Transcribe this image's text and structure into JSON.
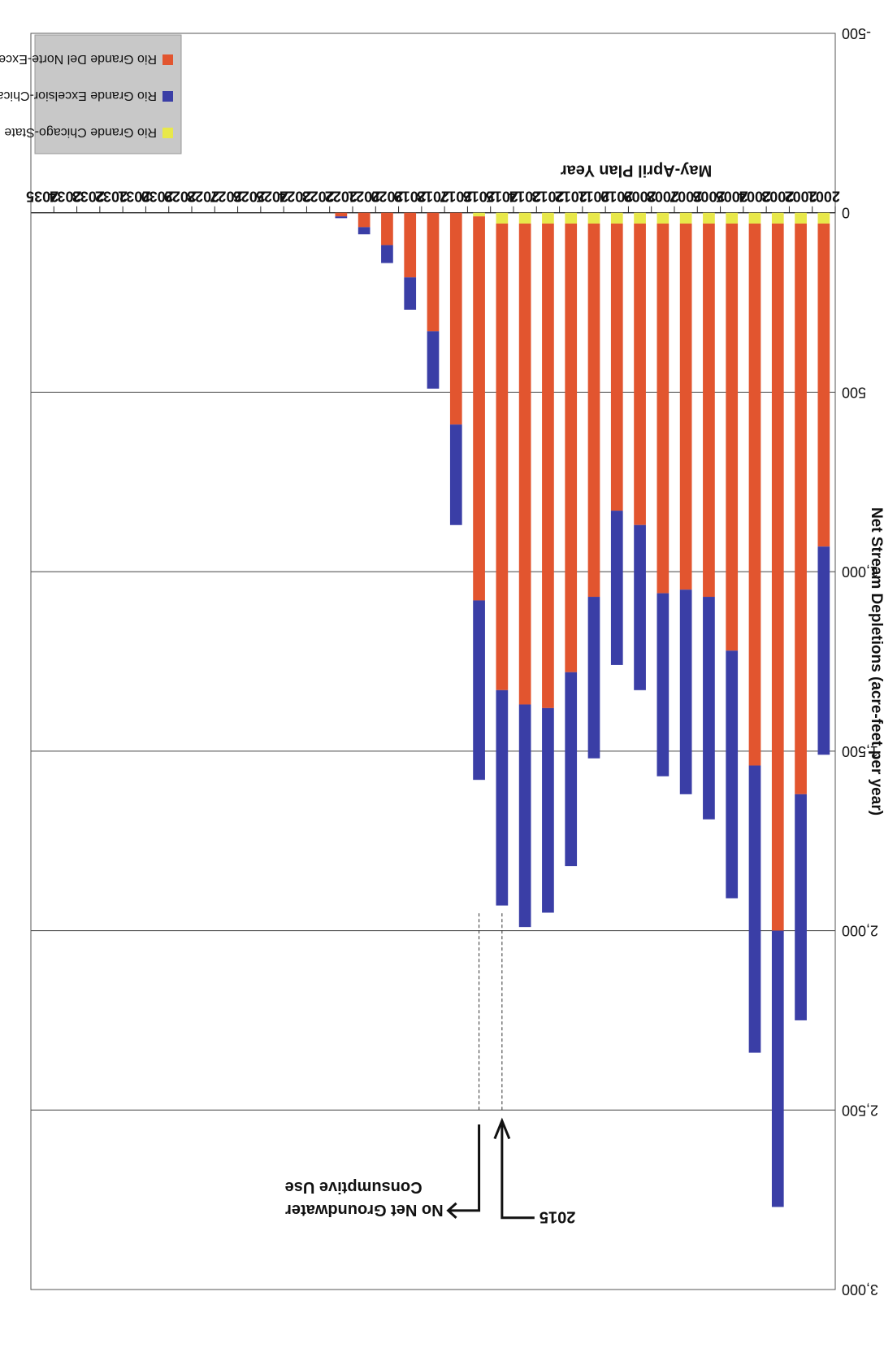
{
  "chart_data": {
    "type": "bar",
    "stacked": true,
    "orientation": "rotated-180",
    "title": "",
    "xlabel": "May-April Plan Year",
    "ylabel": "Net Stream Depletions (acre-feet per year)",
    "ylim": [
      -500,
      3000
    ],
    "yticks": [
      -500,
      0,
      500,
      1000,
      1500,
      2000,
      2500,
      3000
    ],
    "ytick_labels": [
      "-500",
      "0",
      "500",
      "1,000",
      "1,500",
      "2,000",
      "2,500",
      "3,000"
    ],
    "grid": true,
    "legend_position": "top-left",
    "categories": [
      "2001",
      "2002",
      "2003",
      "2004",
      "2005",
      "2006",
      "2007",
      "2008",
      "2009",
      "2010",
      "2011",
      "2012",
      "2013",
      "2014",
      "2015",
      "2016",
      "2017",
      "2018",
      "2019",
      "2020",
      "2021",
      "2022",
      "2023",
      "2024",
      "2025",
      "2026",
      "2027",
      "2028",
      "2029",
      "2030",
      "2031",
      "2032",
      "2033",
      "2034",
      "2035"
    ],
    "series": [
      {
        "name": "Rio Grande Chicago-State Line",
        "color": "#e8e84a",
        "values": [
          30,
          30,
          30,
          30,
          30,
          30,
          30,
          30,
          30,
          30,
          30,
          30,
          30,
          30,
          30,
          10,
          0,
          0,
          0,
          0,
          0,
          0,
          0,
          0,
          0,
          0,
          0,
          0,
          0,
          0,
          0,
          0,
          0,
          0,
          0
        ]
      },
      {
        "name": "Rio Grande Del Norte-Excelsior",
        "color": "#e2552f",
        "values": [
          900,
          1590,
          1970,
          1510,
          1190,
          1040,
          1020,
          1030,
          840,
          800,
          1040,
          1250,
          1350,
          1340,
          1300,
          1070,
          590,
          330,
          180,
          90,
          40,
          10,
          0,
          0,
          0,
          0,
          0,
          0,
          0,
          0,
          0,
          0,
          0,
          0,
          0
        ]
      },
      {
        "name": "Rio Grande Excelsior-Chicago",
        "color": "#3a3ea6",
        "values": [
          580,
          630,
          770,
          800,
          690,
          620,
          570,
          510,
          460,
          430,
          450,
          540,
          570,
          620,
          600,
          500,
          280,
          160,
          90,
          50,
          20,
          5,
          0,
          0,
          0,
          0,
          0,
          0,
          0,
          0,
          0,
          0,
          0,
          0,
          0
        ]
      }
    ],
    "legend": [
      {
        "name": "Rio Grande Chicago-State Line",
        "color": "#e8e84a"
      },
      {
        "name": "Rio Grande Excelsior-Chicago",
        "color": "#3a3ea6"
      },
      {
        "name": "Rio Grande Del Norte-Excelsior",
        "color": "#e2552f"
      }
    ],
    "annotations": [
      {
        "text": "2015",
        "category": "2015"
      },
      {
        "text": "No Net Groundwater",
        "category": "2016"
      },
      {
        "text": "Consumptive Use",
        "category": "2016"
      }
    ]
  }
}
